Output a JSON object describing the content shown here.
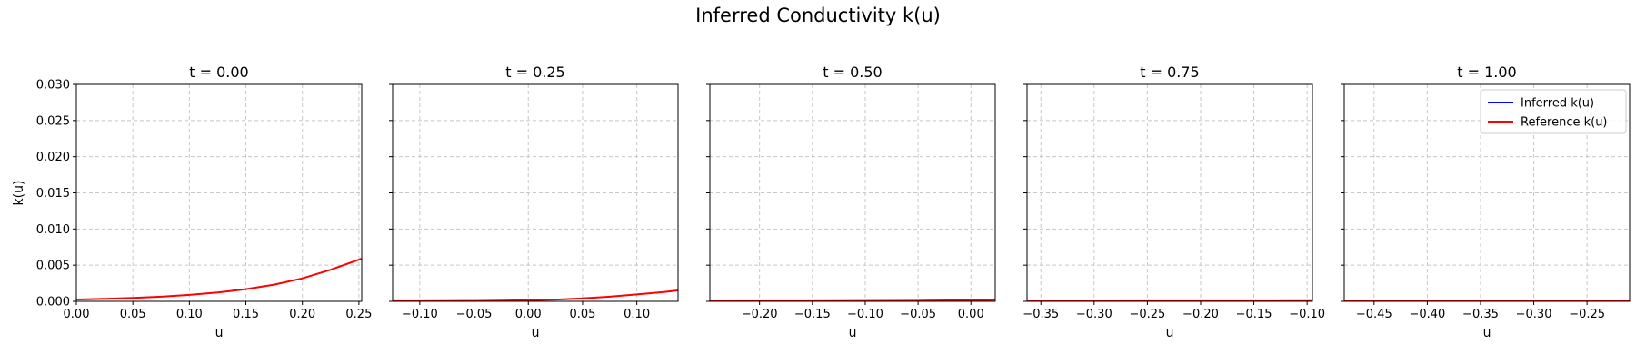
{
  "figure": {
    "title": "Inferred Conductivity k(u)"
  },
  "chart_data": [
    {
      "type": "line",
      "title": "t = 0.00",
      "xlabel": "u",
      "ylabel": "k(u)",
      "xlim": [
        0.0,
        0.2525
      ],
      "ylim": [
        0.0,
        0.03
      ],
      "xticks": [
        "0.00",
        "0.05",
        "0.10",
        "0.15",
        "0.20",
        "0.25"
      ],
      "xtick_values": [
        0.0,
        0.05,
        0.1,
        0.15,
        0.2,
        0.25
      ],
      "yticks": [
        "0.000",
        "0.005",
        "0.010",
        "0.015",
        "0.020",
        "0.025",
        "0.030"
      ],
      "ytick_values": [
        0.0,
        0.005,
        0.01,
        0.015,
        0.02,
        0.025,
        0.03
      ],
      "grid": true,
      "series": [
        {
          "name": "Reference k(u)",
          "color": "#ff0000",
          "x": [
            0.0,
            0.025,
            0.05,
            0.075,
            0.1,
            0.125,
            0.15,
            0.175,
            0.2,
            0.225,
            0.2525
          ],
          "y": [
            0.00025,
            0.00034,
            0.00047,
            0.00065,
            0.00089,
            0.00122,
            0.00168,
            0.00231,
            0.00318,
            0.00437,
            0.0059
          ]
        }
      ]
    },
    {
      "type": "line",
      "title": "t = 0.25",
      "xlabel": "u",
      "ylabel": "",
      "xlim": [
        -0.125,
        0.138
      ],
      "ylim": [
        0.0,
        0.03
      ],
      "xticks": [
        "−0.10",
        "−0.05",
        "0.00",
        "0.05",
        "0.10"
      ],
      "xtick_values": [
        -0.1,
        -0.05,
        0.0,
        0.05,
        0.1
      ],
      "yticks": [],
      "ytick_values": [
        0.0,
        0.005,
        0.01,
        0.015,
        0.02,
        0.025,
        0.03
      ],
      "grid": true,
      "series": [
        {
          "name": "Reference k(u)",
          "color": "#ff0000",
          "x": [
            -0.125,
            -0.1,
            -0.075,
            -0.05,
            -0.025,
            0.0,
            0.025,
            0.05,
            0.075,
            0.1,
            0.125,
            0.138
          ],
          "y": [
            1e-05,
            2e-05,
            3e-05,
            5e-05,
            9e-05,
            0.00015,
            0.00024,
            0.0004,
            0.00064,
            0.00096,
            0.00128,
            0.0015
          ]
        }
      ]
    },
    {
      "type": "line",
      "title": "t = 0.50",
      "xlabel": "u",
      "ylabel": "",
      "xlim": [
        -0.247,
        0.023
      ],
      "ylim": [
        0.0,
        0.03
      ],
      "xticks": [
        "−0.20",
        "−0.15",
        "−0.10",
        "−0.05",
        "0.00"
      ],
      "xtick_values": [
        -0.2,
        -0.15,
        -0.1,
        -0.05,
        0.0
      ],
      "yticks": [],
      "ytick_values": [
        0.0,
        0.005,
        0.01,
        0.015,
        0.02,
        0.025,
        0.03
      ],
      "grid": true,
      "series": [
        {
          "name": "Reference k(u)",
          "color": "#ff0000",
          "x": [
            -0.247,
            -0.2,
            -0.15,
            -0.1,
            -0.05,
            0.0,
            0.023
          ],
          "y": [
            0.0,
            1e-05,
            2e-05,
            4e-05,
            8e-05,
            0.00015,
            0.0002
          ]
        }
      ]
    },
    {
      "type": "line",
      "title": "t = 0.75",
      "xlabel": "u",
      "ylabel": "",
      "xlim": [
        -0.363,
        -0.095
      ],
      "ylim": [
        0.0,
        0.03
      ],
      "xticks": [
        "−0.35",
        "−0.30",
        "−0.25",
        "−0.20",
        "−0.15",
        "−0.10"
      ],
      "xtick_values": [
        -0.35,
        -0.3,
        -0.25,
        -0.2,
        -0.15,
        -0.1
      ],
      "yticks": [],
      "ytick_values": [
        0.0,
        0.005,
        0.01,
        0.015,
        0.02,
        0.025,
        0.03
      ],
      "grid": true,
      "series": [
        {
          "name": "Reference k(u)",
          "color": "#ff0000",
          "x": [
            -0.363,
            -0.3,
            -0.25,
            -0.2,
            -0.15,
            -0.095
          ],
          "y": [
            0.0,
            0.0,
            1e-05,
            1e-05,
            2e-05,
            3e-05
          ]
        }
      ]
    },
    {
      "type": "line",
      "title": "t = 1.00",
      "xlabel": "u",
      "ylabel": "",
      "xlim": [
        -0.478,
        -0.21
      ],
      "ylim": [
        0.0,
        0.03
      ],
      "xticks": [
        "−0.45",
        "−0.40",
        "−0.35",
        "−0.30",
        "−0.25"
      ],
      "xtick_values": [
        -0.45,
        -0.4,
        -0.35,
        -0.3,
        -0.25
      ],
      "yticks": [],
      "ytick_values": [
        0.0,
        0.005,
        0.01,
        0.015,
        0.02,
        0.025,
        0.03
      ],
      "grid": true,
      "legend": {
        "placement": "upper-right",
        "entries": [
          {
            "label": "Inferred k(u)",
            "color": "#0000ff"
          },
          {
            "label": "Reference k(u)",
            "color": "#ff0000"
          }
        ]
      },
      "series": [
        {
          "name": "Reference k(u)",
          "color": "#ff0000",
          "x": [
            -0.478,
            -0.4,
            -0.3,
            -0.21
          ],
          "y": [
            0.0,
            0.0,
            0.0,
            0.0
          ]
        }
      ]
    }
  ]
}
